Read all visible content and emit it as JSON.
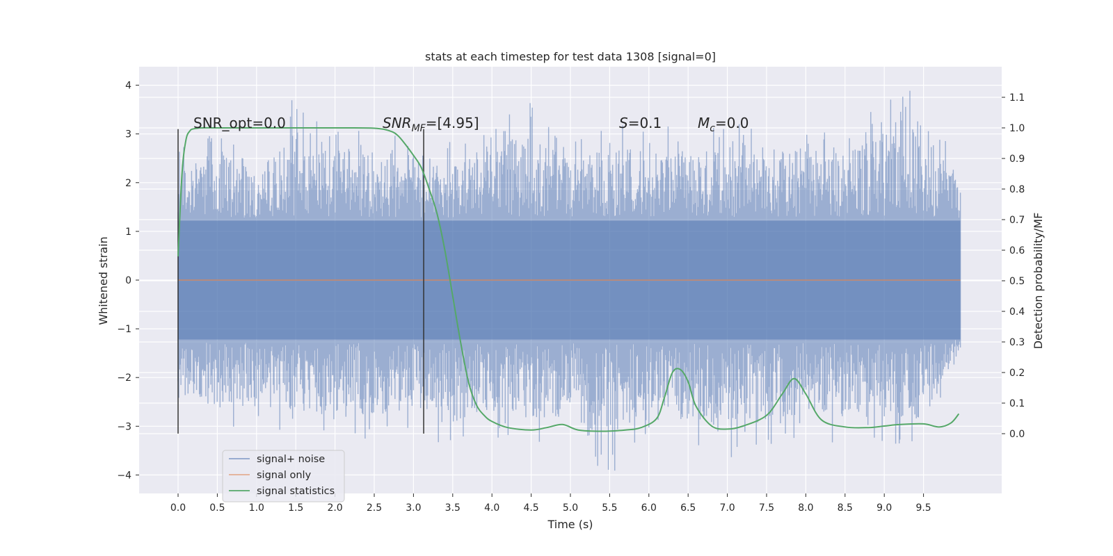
{
  "chart_data": {
    "type": "line",
    "title": "stats at each timestep for test data 1308 [signal=0]",
    "xlabel": "Time (s)",
    "ylabel": "Whitened strain",
    "ylabel_right": "Detection probability/MF",
    "xlim": [
      -0.48,
      10.48
    ],
    "ylim": [
      -4.4,
      4.35
    ],
    "ylim_right": [
      -0.2,
      1.19
    ],
    "grid": true,
    "legend_position": "lower-left",
    "x_ticks": [
      0.0,
      0.5,
      1.0,
      1.5,
      2.0,
      2.5,
      3.0,
      3.5,
      4.0,
      4.5,
      5.0,
      5.5,
      6.0,
      6.5,
      7.0,
      7.5,
      8.0,
      8.5,
      9.0,
      9.5
    ],
    "x_tick_labels": [
      "0.0",
      "0.5",
      "1.0",
      "1.5",
      "2.0",
      "2.5",
      "3.0",
      "3.5",
      "4.0",
      "4.5",
      "5.0",
      "5.5",
      "6.0",
      "6.5",
      "7.0",
      "7.5",
      "8.0",
      "8.5",
      "9.0",
      "9.5"
    ],
    "y_ticks": [
      -4,
      -3,
      -2,
      -1,
      0,
      1,
      2,
      3,
      4
    ],
    "y_tick_labels": [
      "−4",
      "−3",
      "−2",
      "−1",
      "0",
      "1",
      "2",
      "3",
      "4"
    ],
    "y_right_ticks": [
      0.0,
      0.1,
      0.2,
      0.3,
      0.4,
      0.5,
      0.6,
      0.7,
      0.8,
      0.9,
      1.0,
      1.1
    ],
    "y_right_tick_labels": [
      "0.0",
      "0.1",
      "0.2",
      "0.3",
      "0.4",
      "0.5",
      "0.6",
      "0.7",
      "0.8",
      "0.9",
      "1.0",
      "1.1"
    ],
    "series": [
      {
        "name": "signal+ noise",
        "color": "#4c72b0",
        "axis": "left",
        "envelope_t": [
          0.0,
          0.1,
          0.5,
          1.0,
          1.5,
          2.0,
          2.5,
          3.0,
          3.5,
          4.0,
          4.5,
          5.0,
          5.5,
          6.0,
          6.5,
          7.0,
          7.5,
          8.0,
          8.5,
          9.0,
          9.5,
          9.97
        ],
        "envelope_max": [
          3.1,
          2.6,
          3.3,
          2.5,
          3.9,
          3.2,
          3.1,
          3.1,
          2.9,
          3.1,
          3.8,
          2.9,
          3.2,
          3.3,
          3.0,
          3.4,
          3.0,
          3.3,
          3.1,
          3.7,
          4.0,
          2.3
        ],
        "envelope_min": [
          -3.2,
          -2.7,
          -3.3,
          -3.1,
          -3.2,
          -3.2,
          -3.3,
          -3.1,
          -3.5,
          -3.2,
          -3.5,
          -3.3,
          -4.1,
          -3.1,
          -3.5,
          -3.7,
          -3.5,
          -3.3,
          -3.4,
          -3.5,
          -3.4,
          -1.5
        ]
      },
      {
        "name": "signal only",
        "color": "#dd8452",
        "axis": "left",
        "x": [
          0.0,
          9.97
        ],
        "y": [
          0.0,
          0.0
        ]
      },
      {
        "name": "signal statistics",
        "color": "#55a868",
        "axis": "right",
        "x": [
          0.0,
          0.05,
          0.1,
          0.15,
          0.2,
          0.3,
          0.5,
          1.0,
          2.0,
          2.5,
          2.7,
          2.8,
          2.9,
          3.0,
          3.1,
          3.2,
          3.3,
          3.4,
          3.5,
          3.6,
          3.7,
          3.8,
          3.9,
          4.0,
          4.2,
          4.5,
          4.7,
          4.9,
          5.1,
          5.4,
          5.7,
          5.9,
          6.1,
          6.2,
          6.3,
          6.4,
          6.5,
          6.6,
          6.8,
          7.0,
          7.2,
          7.5,
          7.7,
          7.85,
          8.0,
          8.2,
          8.5,
          8.8,
          9.0,
          9.2,
          9.5,
          9.7,
          9.85,
          9.95
        ],
        "y": [
          0.58,
          0.85,
          0.96,
          0.99,
          0.997,
          1.0,
          1.0,
          1.0,
          1.0,
          0.999,
          0.99,
          0.975,
          0.945,
          0.91,
          0.87,
          0.8,
          0.72,
          0.6,
          0.45,
          0.3,
          0.17,
          0.095,
          0.06,
          0.04,
          0.02,
          0.012,
          0.02,
          0.03,
          0.012,
          0.008,
          0.012,
          0.02,
          0.05,
          0.12,
          0.2,
          0.21,
          0.17,
          0.09,
          0.025,
          0.015,
          0.025,
          0.06,
          0.13,
          0.18,
          0.13,
          0.045,
          0.022,
          0.02,
          0.025,
          0.03,
          0.032,
          0.022,
          0.035,
          0.065
        ]
      }
    ],
    "markers": [
      {
        "x": 0.0,
        "y_min": -3.15,
        "y_max": 3.1
      },
      {
        "x": 3.13,
        "y_min": -3.15,
        "y_max": 3.1
      }
    ],
    "annotations": {
      "snr_opt": "SNR_opt=0.0",
      "snr_mf_main": "SNR",
      "snr_mf_sub": "MF",
      "snr_mf_rest": "=[4.95]",
      "s_symbol": "S",
      "s_rest": "=0.1",
      "mc_symbol": "M",
      "mc_sub": "c",
      "mc_rest": "=0.0"
    },
    "legend": [
      {
        "label": "signal+ noise",
        "color": "#4c72b0"
      },
      {
        "label": "signal only",
        "color": "#dd8452"
      },
      {
        "label": "signal statistics",
        "color": "#55a868"
      }
    ],
    "colors": {
      "plot_background": "#eaeaf2",
      "grid": "#ffffff",
      "marker": "#333333"
    }
  }
}
